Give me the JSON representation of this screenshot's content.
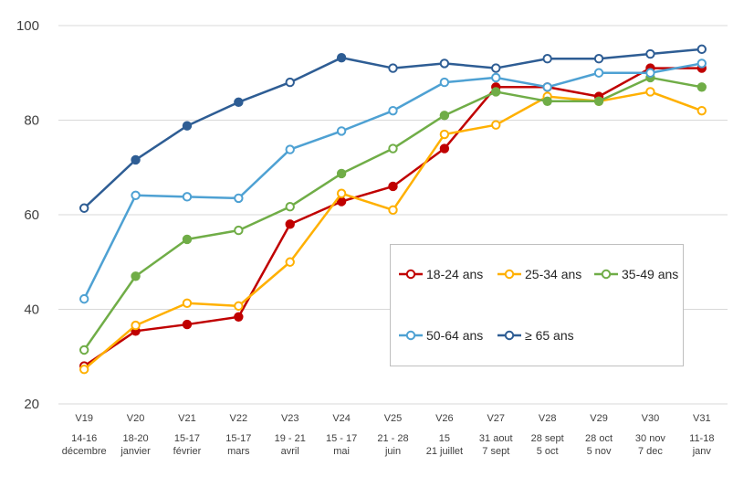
{
  "chart_data": {
    "type": "line",
    "title": "",
    "xlabel": "",
    "ylabel": "",
    "ylim": [
      20,
      100
    ],
    "yticks": [
      20,
      40,
      60,
      80,
      100
    ],
    "grid": true,
    "legend_position": "center-right",
    "categories": [
      {
        "wave": "V19",
        "dates1": "14-16",
        "dates2": "décembre"
      },
      {
        "wave": "V20",
        "dates1": "18-20",
        "dates2": "janvier"
      },
      {
        "wave": "V21",
        "dates1": "15-17",
        "dates2": "février"
      },
      {
        "wave": "V22",
        "dates1": "15-17",
        "dates2": "mars"
      },
      {
        "wave": "V23",
        "dates1": "19 - 21",
        "dates2": "avril"
      },
      {
        "wave": "V24",
        "dates1": "15 - 17",
        "dates2": "mai"
      },
      {
        "wave": "V25",
        "dates1": "21 - 28",
        "dates2": "juin"
      },
      {
        "wave": "V26",
        "dates1": "15",
        "dates2": "21 juillet"
      },
      {
        "wave": "V27",
        "dates1": "31 aout",
        "dates2": "7 sept"
      },
      {
        "wave": "V28",
        "dates1": "28 sept",
        "dates2": "5 oct"
      },
      {
        "wave": "V29",
        "dates1": "28 oct",
        "dates2": "5 nov"
      },
      {
        "wave": "V30",
        "dates1": "30 nov",
        "dates2": "7 dec"
      },
      {
        "wave": "V31",
        "dates1": "11-18",
        "dates2": "janv"
      }
    ],
    "series": [
      {
        "name": "18-24 ans",
        "color": "#c00000",
        "values": [
          28,
          35.4,
          36.8,
          38.4,
          58,
          62.8,
          66,
          74,
          87,
          87,
          85,
          91,
          91
        ],
        "filled": [
          false,
          true,
          true,
          true,
          true,
          true,
          true,
          true,
          true,
          true,
          true,
          true,
          true
        ]
      },
      {
        "name": "25-34 ans",
        "color": "#ffb000",
        "values": [
          27.3,
          36.6,
          41.3,
          40.7,
          50,
          64.5,
          61,
          77,
          79,
          85,
          84,
          86,
          82
        ],
        "filled": [
          false,
          false,
          false,
          false,
          false,
          false,
          false,
          false,
          false,
          false,
          false,
          false,
          false
        ]
      },
      {
        "name": "35-49 ans",
        "color": "#70ad47",
        "values": [
          31.4,
          47,
          54.8,
          56.7,
          61.7,
          68.7,
          74,
          81,
          86,
          84,
          84,
          89,
          87
        ],
        "filled": [
          false,
          true,
          true,
          false,
          false,
          true,
          false,
          true,
          true,
          true,
          true,
          true,
          true
        ]
      },
      {
        "name": "50-64 ans",
        "color": "#4ea1d3",
        "values": [
          42.2,
          64.1,
          63.8,
          63.5,
          73.8,
          77.7,
          82,
          88,
          89,
          87,
          90,
          90,
          92
        ],
        "filled": [
          false,
          false,
          false,
          false,
          false,
          false,
          false,
          false,
          false,
          false,
          false,
          false,
          false
        ]
      },
      {
        "name": "≥ 65 ans",
        "color": "#2e5d94",
        "values": [
          61.4,
          71.6,
          78.8,
          83.8,
          88,
          93.2,
          91,
          92,
          91,
          93,
          93,
          94,
          95
        ],
        "filled": [
          false,
          true,
          true,
          true,
          false,
          true,
          false,
          false,
          false,
          false,
          false,
          false,
          false
        ]
      }
    ]
  }
}
